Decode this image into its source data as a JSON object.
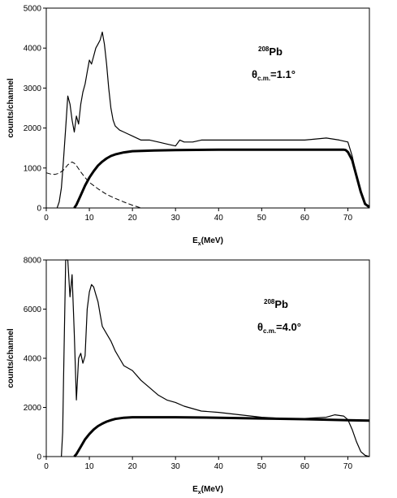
{
  "chart_data": [
    {
      "type": "line",
      "xlabel": {
        "main": "E",
        "sub": "x",
        "rest": "(MeV)"
      },
      "ylabel": "counts/channel",
      "xlim": [
        0,
        75
      ],
      "ylim": [
        0,
        5000
      ],
      "xticks": [
        0,
        10,
        20,
        30,
        40,
        50,
        60,
        70
      ],
      "yticks": [
        0,
        1000,
        2000,
        3000,
        4000,
        5000
      ],
      "grid": false,
      "annotation": {
        "isotope": {
          "mass": "208",
          "element": "Pb"
        },
        "angle": {
          "symbol": "θ",
          "sub": "c.m.",
          "value": "=1.1°"
        }
      },
      "series": [
        {
          "style": "thin-solid",
          "x": [
            2.5,
            3.0,
            3.5,
            4.0,
            4.5,
            5.0,
            5.5,
            6.0,
            6.5,
            7.0,
            7.5,
            8.0,
            8.5,
            9.0,
            9.5,
            10.0,
            10.5,
            11.0,
            11.5,
            12.0,
            12.5,
            13.0,
            13.5,
            14.0,
            14.5,
            15.0,
            15.5,
            16.0,
            17.0,
            18.0,
            19.0,
            20.0,
            22.0,
            24.0,
            26.0,
            28.0,
            30.0,
            31.0,
            32.0,
            34.0,
            36.0,
            38.0,
            40.0,
            45.0,
            50.0,
            55.0,
            60.0,
            65.0,
            68.0,
            70.0,
            71.0,
            72.0,
            73.0,
            74.0,
            75.0
          ],
          "y": [
            0,
            150,
            500,
            1200,
            2000,
            2800,
            2600,
            2200,
            1900,
            2300,
            2100,
            2600,
            2900,
            3100,
            3400,
            3700,
            3600,
            3800,
            4000,
            4100,
            4200,
            4400,
            4100,
            3600,
            3000,
            2500,
            2200,
            2050,
            1950,
            1900,
            1850,
            1800,
            1700,
            1700,
            1650,
            1600,
            1550,
            1700,
            1650,
            1650,
            1700,
            1700,
            1700,
            1700,
            1700,
            1700,
            1700,
            1750,
            1700,
            1650,
            1300,
            800,
            400,
            100,
            50
          ]
        },
        {
          "style": "thick-solid",
          "x": [
            6.5,
            7.0,
            8.0,
            9.0,
            10.0,
            11.0,
            12.0,
            13.0,
            14.0,
            15.0,
            16.0,
            18.0,
            20.0,
            25.0,
            30.0,
            40.0,
            50.0,
            60.0,
            65.0,
            69.0,
            69.5,
            70.0,
            71.0,
            72.0,
            73.0,
            74.0,
            75.0
          ],
          "y": [
            0,
            80,
            320,
            560,
            760,
            920,
            1060,
            1160,
            1240,
            1300,
            1340,
            1390,
            1420,
            1440,
            1450,
            1460,
            1460,
            1460,
            1460,
            1460,
            1450,
            1400,
            1200,
            800,
            400,
            100,
            20
          ]
        },
        {
          "style": "dashed",
          "x": [
            0,
            1,
            2,
            3,
            4,
            5,
            5.5,
            6,
            6.5,
            7,
            8,
            9,
            10,
            12,
            14,
            16,
            18,
            20,
            22
          ],
          "y": [
            880,
            850,
            840,
            870,
            950,
            1080,
            1120,
            1150,
            1120,
            1060,
            900,
            760,
            640,
            480,
            340,
            240,
            150,
            70,
            0
          ]
        }
      ]
    },
    {
      "type": "line",
      "xlabel": {
        "main": "E",
        "sub": "x",
        "rest": "(MeV)"
      },
      "ylabel": "counts/channel",
      "xlim": [
        0,
        75
      ],
      "ylim": [
        0,
        8000
      ],
      "xticks": [
        0,
        10,
        20,
        30,
        40,
        50,
        60,
        70
      ],
      "yticks": [
        0,
        2000,
        4000,
        6000,
        8000
      ],
      "grid": false,
      "annotation": {
        "isotope": {
          "mass": "208",
          "element": "Pb"
        },
        "angle": {
          "symbol": "θ",
          "sub": "c.m.",
          "value": "=4.0°"
        }
      },
      "series": [
        {
          "style": "thin-solid",
          "x": [
            3.5,
            3.8,
            4.0,
            4.5,
            5.0,
            5.5,
            6.0,
            6.5,
            7.0,
            7.5,
            8.0,
            8.5,
            9.0,
            9.5,
            10.0,
            10.5,
            11.0,
            11.5,
            12.0,
            12.5,
            13.0,
            14.0,
            15.0,
            16.0,
            17.0,
            18.0,
            20.0,
            22.0,
            24.0,
            26.0,
            28.0,
            30.0,
            32.0,
            34.0,
            36.0,
            40.0,
            45.0,
            50.0,
            55.0,
            60.0,
            65.0,
            67.0,
            69.0,
            70.0,
            71.0,
            72.0,
            73.0,
            74.0,
            75.0
          ],
          "y": [
            0,
            1000,
            3000,
            8000,
            8000,
            6500,
            7400,
            5000,
            2300,
            4000,
            4200,
            3800,
            4100,
            6000,
            6700,
            7000,
            6900,
            6600,
            6300,
            5800,
            5300,
            5000,
            4700,
            4300,
            4000,
            3700,
            3500,
            3100,
            2800,
            2500,
            2300,
            2200,
            2050,
            1950,
            1850,
            1800,
            1700,
            1600,
            1550,
            1550,
            1600,
            1700,
            1650,
            1500,
            1100,
            600,
            200,
            50,
            0
          ]
        },
        {
          "style": "thick-solid",
          "x": [
            6.5,
            7.0,
            8.0,
            9.0,
            10.0,
            11.0,
            12.0,
            13.0,
            14.0,
            15.0,
            16.0,
            18.0,
            20.0,
            22.0,
            25.0,
            30.0,
            40.0,
            50.0,
            60.0,
            70.0,
            75.0
          ],
          "y": [
            0,
            100,
            400,
            700,
            920,
            1100,
            1240,
            1340,
            1420,
            1480,
            1530,
            1580,
            1600,
            1600,
            1600,
            1600,
            1580,
            1550,
            1520,
            1480,
            1460
          ]
        }
      ]
    }
  ]
}
